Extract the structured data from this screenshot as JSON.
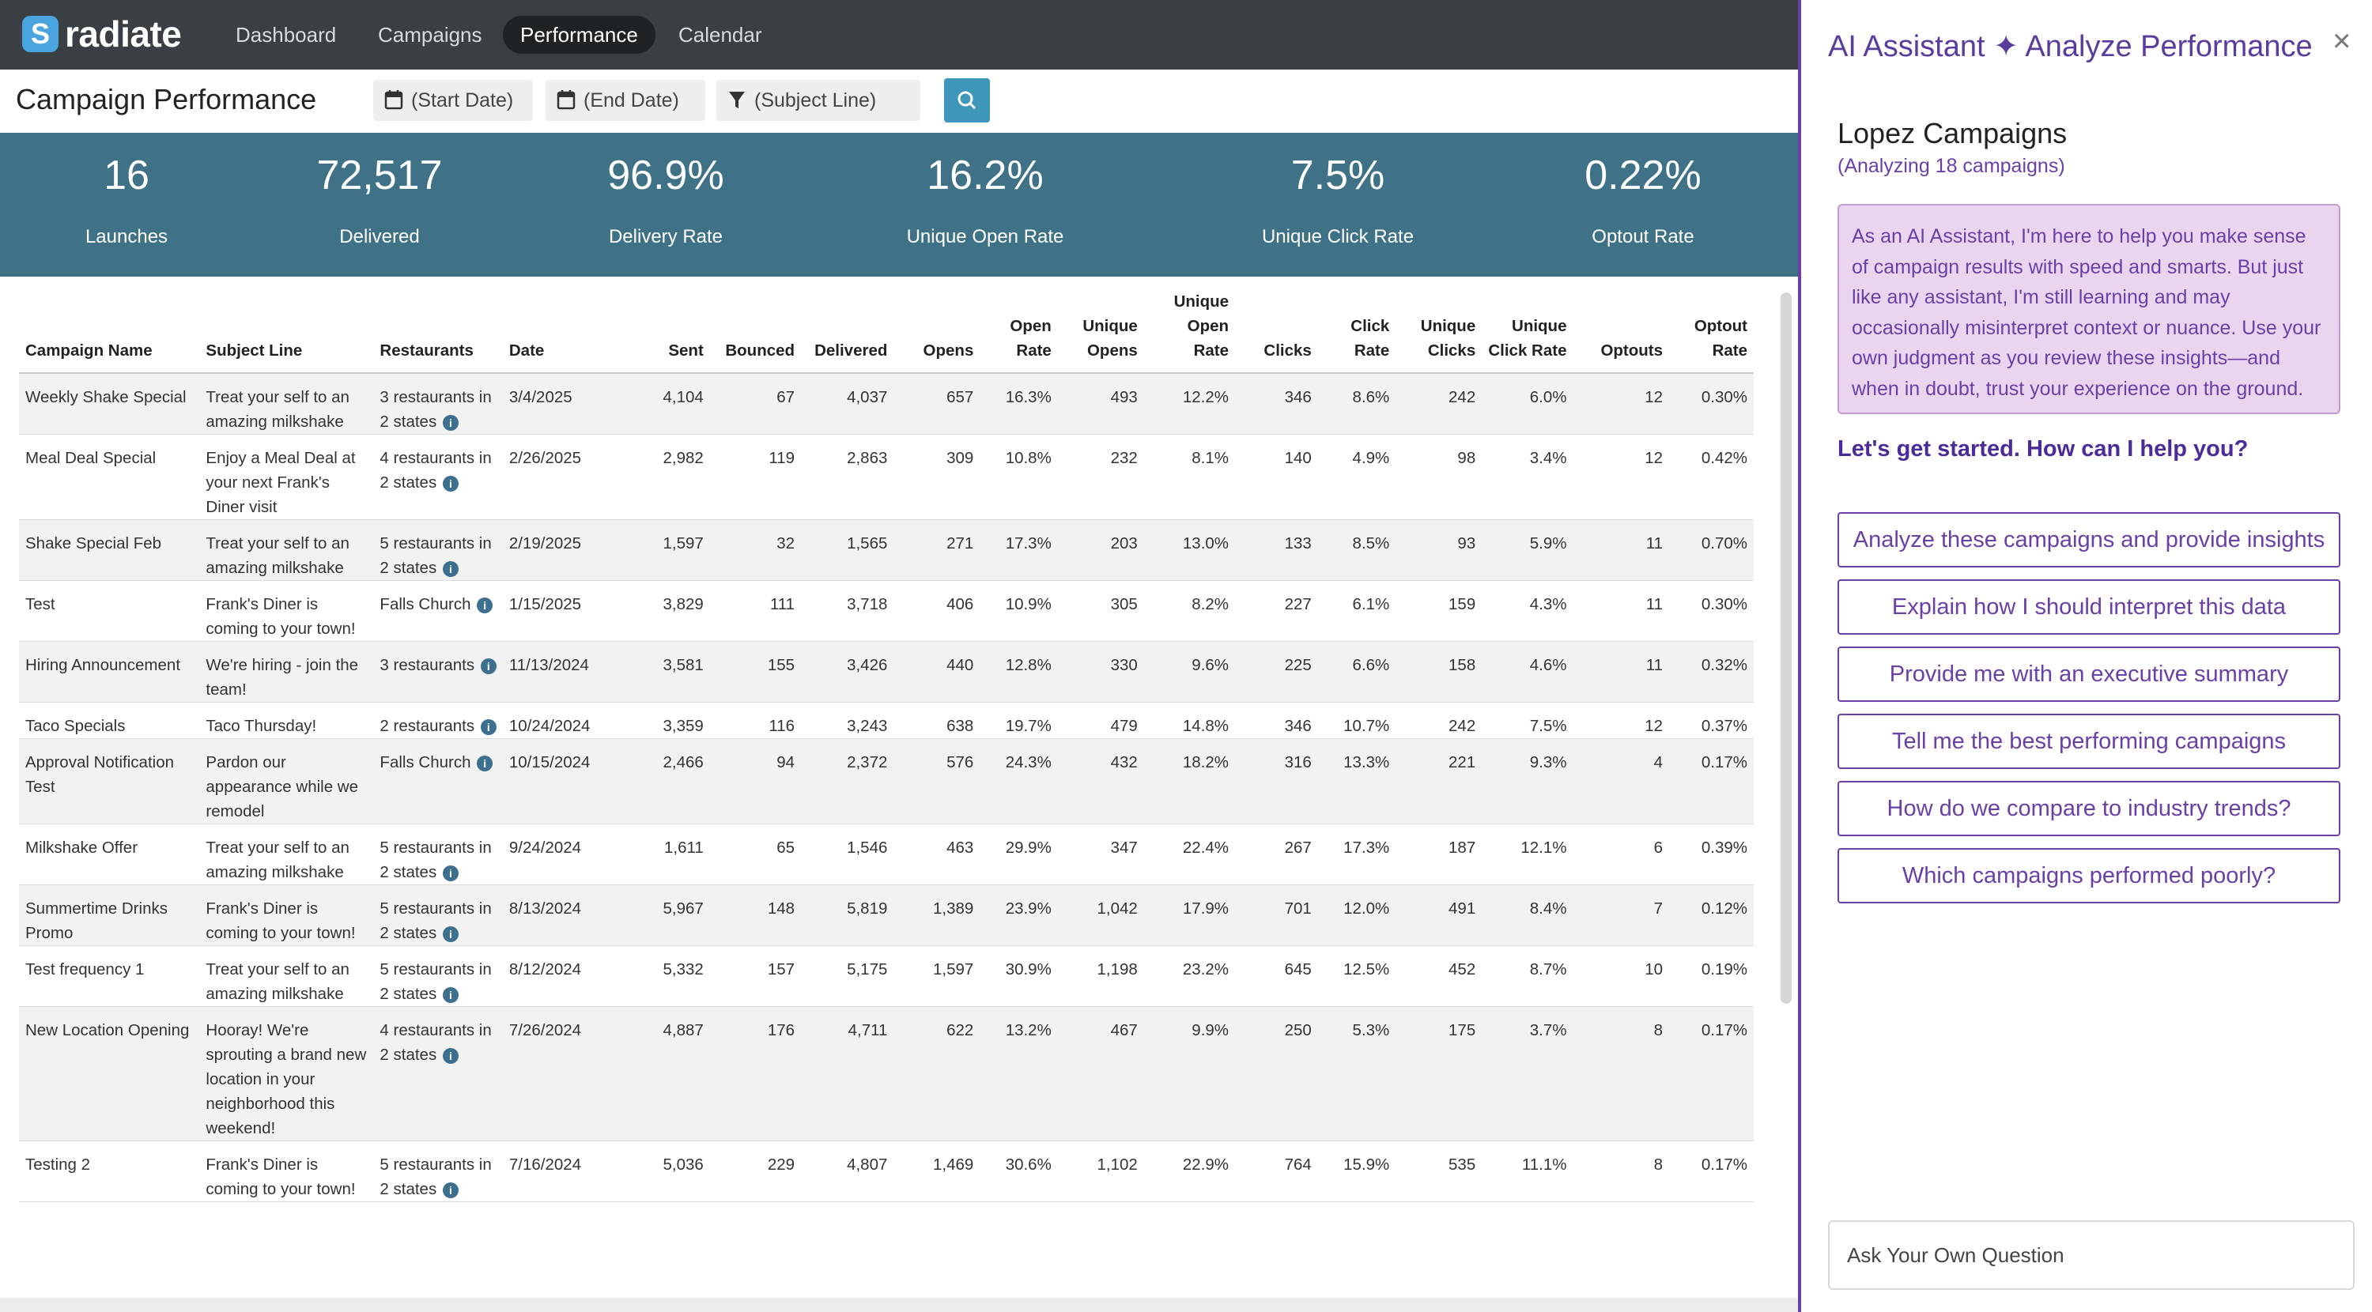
{
  "brand": {
    "logo_letter": "S",
    "name": "radiate"
  },
  "nav": {
    "items": [
      "Dashboard",
      "Campaigns",
      "Performance",
      "Calendar"
    ],
    "active": "Performance"
  },
  "toolbar": {
    "title": "Campaign Performance",
    "start_date": "(Start Date)",
    "end_date": "(End Date)",
    "subject_filter": "(Subject Line)"
  },
  "stats": [
    {
      "value": "16",
      "label": "Launches"
    },
    {
      "value": "72,517",
      "label": "Delivered"
    },
    {
      "value": "96.9%",
      "label": "Delivery Rate"
    },
    {
      "value": "16.2%",
      "label": "Unique Open Rate"
    },
    {
      "value": "7.5%",
      "label": "Unique Click Rate"
    },
    {
      "value": "0.22%",
      "label": "Optout Rate"
    }
  ],
  "table": {
    "columns": [
      "Campaign Name",
      "Subject Line",
      "Restaurants",
      "Date",
      "Sent",
      "Bounced",
      "Delivered",
      "Opens",
      "Open Rate",
      "Unique Opens",
      "Unique Open Rate",
      "Clicks",
      "Click Rate",
      "Unique Clicks",
      "Unique Click Rate",
      "Optouts",
      "Optout Rate"
    ],
    "rows": [
      {
        "name": "Weekly Shake Special",
        "subject": "Treat your self to an amazing milkshake",
        "restaurants": "3 restaurants in 2 states",
        "date": "3/4/2025",
        "sent": "4,104",
        "bounced": "67",
        "delivered": "4,037",
        "opens": "657",
        "open_rate": "16.3%",
        "u_opens": "493",
        "u_open_rate": "12.2%",
        "clicks": "346",
        "click_rate": "8.6%",
        "u_clicks": "242",
        "u_click_rate": "6.0%",
        "optouts": "12",
        "optout_rate": "0.30%"
      },
      {
        "name": "Meal Deal Special",
        "subject": "Enjoy a Meal Deal at your next Frank's Diner visit",
        "restaurants": "4 restaurants in 2 states",
        "date": "2/26/2025",
        "sent": "2,982",
        "bounced": "119",
        "delivered": "2,863",
        "opens": "309",
        "open_rate": "10.8%",
        "u_opens": "232",
        "u_open_rate": "8.1%",
        "clicks": "140",
        "click_rate": "4.9%",
        "u_clicks": "98",
        "u_click_rate": "3.4%",
        "optouts": "12",
        "optout_rate": "0.42%"
      },
      {
        "name": "Shake Special Feb",
        "subject": "Treat your self to an amazing milkshake",
        "restaurants": "5 restaurants in 2 states",
        "date": "2/19/2025",
        "sent": "1,597",
        "bounced": "32",
        "delivered": "1,565",
        "opens": "271",
        "open_rate": "17.3%",
        "u_opens": "203",
        "u_open_rate": "13.0%",
        "clicks": "133",
        "click_rate": "8.5%",
        "u_clicks": "93",
        "u_click_rate": "5.9%",
        "optouts": "11",
        "optout_rate": "0.70%"
      },
      {
        "name": "Test",
        "subject": "Frank's Diner is coming to your town!",
        "restaurants": "Falls Church",
        "date": "1/15/2025",
        "sent": "3,829",
        "bounced": "111",
        "delivered": "3,718",
        "opens": "406",
        "open_rate": "10.9%",
        "u_opens": "305",
        "u_open_rate": "8.2%",
        "clicks": "227",
        "click_rate": "6.1%",
        "u_clicks": "159",
        "u_click_rate": "4.3%",
        "optouts": "11",
        "optout_rate": "0.30%"
      },
      {
        "name": "Hiring Announcement",
        "subject": "We're hiring - join the team!",
        "restaurants": "3 restaurants",
        "date": "11/13/2024",
        "sent": "3,581",
        "bounced": "155",
        "delivered": "3,426",
        "opens": "440",
        "open_rate": "12.8%",
        "u_opens": "330",
        "u_open_rate": "9.6%",
        "clicks": "225",
        "click_rate": "6.6%",
        "u_clicks": "158",
        "u_click_rate": "4.6%",
        "optouts": "11",
        "optout_rate": "0.32%"
      },
      {
        "name": "Taco Specials",
        "subject": "Taco Thursday!",
        "restaurants": "2 restaurants",
        "date": "10/24/2024",
        "sent": "3,359",
        "bounced": "116",
        "delivered": "3,243",
        "opens": "638",
        "open_rate": "19.7%",
        "u_opens": "479",
        "u_open_rate": "14.8%",
        "clicks": "346",
        "click_rate": "10.7%",
        "u_clicks": "242",
        "u_click_rate": "7.5%",
        "optouts": "12",
        "optout_rate": "0.37%"
      },
      {
        "name": "Approval Notification Test",
        "subject": "Pardon our appearance while we remodel",
        "restaurants": "Falls Church",
        "date": "10/15/2024",
        "sent": "2,466",
        "bounced": "94",
        "delivered": "2,372",
        "opens": "576",
        "open_rate": "24.3%",
        "u_opens": "432",
        "u_open_rate": "18.2%",
        "clicks": "316",
        "click_rate": "13.3%",
        "u_clicks": "221",
        "u_click_rate": "9.3%",
        "optouts": "4",
        "optout_rate": "0.17%"
      },
      {
        "name": "Milkshake Offer",
        "subject": "Treat your self to an amazing milkshake",
        "restaurants": "5 restaurants in 2 states",
        "date": "9/24/2024",
        "sent": "1,611",
        "bounced": "65",
        "delivered": "1,546",
        "opens": "463",
        "open_rate": "29.9%",
        "u_opens": "347",
        "u_open_rate": "22.4%",
        "clicks": "267",
        "click_rate": "17.3%",
        "u_clicks": "187",
        "u_click_rate": "12.1%",
        "optouts": "6",
        "optout_rate": "0.39%"
      },
      {
        "name": "Summertime Drinks Promo",
        "subject": "Frank's Diner is coming to your town!",
        "restaurants": "5 restaurants in 2 states",
        "date": "8/13/2024",
        "sent": "5,967",
        "bounced": "148",
        "delivered": "5,819",
        "opens": "1,389",
        "open_rate": "23.9%",
        "u_opens": "1,042",
        "u_open_rate": "17.9%",
        "clicks": "701",
        "click_rate": "12.0%",
        "u_clicks": "491",
        "u_click_rate": "8.4%",
        "optouts": "7",
        "optout_rate": "0.12%"
      },
      {
        "name": "Test frequency 1",
        "subject": "Treat your self to an amazing milkshake",
        "restaurants": "5 restaurants in 2 states",
        "date": "8/12/2024",
        "sent": "5,332",
        "bounced": "157",
        "delivered": "5,175",
        "opens": "1,597",
        "open_rate": "30.9%",
        "u_opens": "1,198",
        "u_open_rate": "23.2%",
        "clicks": "645",
        "click_rate": "12.5%",
        "u_clicks": "452",
        "u_click_rate": "8.7%",
        "optouts": "10",
        "optout_rate": "0.19%"
      },
      {
        "name": "New Location Opening",
        "subject": "Hooray! We're sprouting a brand new location in your neighborhood this weekend!",
        "restaurants": "4 restaurants in 2 states",
        "date": "7/26/2024",
        "sent": "4,887",
        "bounced": "176",
        "delivered": "4,711",
        "opens": "622",
        "open_rate": "13.2%",
        "u_opens": "467",
        "u_open_rate": "9.9%",
        "clicks": "250",
        "click_rate": "5.3%",
        "u_clicks": "175",
        "u_click_rate": "3.7%",
        "optouts": "8",
        "optout_rate": "0.17%"
      },
      {
        "name": "Testing 2",
        "subject": "Frank's Diner is coming to your town!",
        "restaurants": "5 restaurants in 2 states",
        "date": "7/16/2024",
        "sent": "5,036",
        "bounced": "229",
        "delivered": "4,807",
        "opens": "1,469",
        "open_rate": "30.6%",
        "u_opens": "1,102",
        "u_open_rate": "22.9%",
        "clicks": "764",
        "click_rate": "15.9%",
        "u_clicks": "535",
        "u_click_rate": "11.1%",
        "optouts": "8",
        "optout_rate": "0.17%"
      }
    ]
  },
  "assistant": {
    "title": "AI Assistant ✦ Analyze Performance",
    "close": "×",
    "heading": "Lopez Campaigns",
    "subheading": "(Analyzing 18 campaigns)",
    "notice": "As an AI Assistant, I'm here to help you make sense of campaign results with speed and smarts. But just like any assistant, I'm still learning and may occasionally misinterpret context or nuance. Use your own judgment as you review these insights—and when in doubt, trust your experience on the ground.",
    "prompt": "Let's get started. How can I help you?",
    "buttons": [
      "Analyze these campaigns and provide insights",
      "Explain how I should interpret this data",
      "Provide me with an executive summary",
      "Tell me the best performing campaigns",
      "How do we compare to industry trends?",
      "Which campaigns performed poorly?"
    ],
    "input_placeholder": "Ask Your Own Question"
  },
  "colors": {
    "nav_bg": "#3a3f44",
    "stats_bg": "#3f7286",
    "accent": "#3e97b8",
    "assistant_purple": "#6a3fa7"
  }
}
